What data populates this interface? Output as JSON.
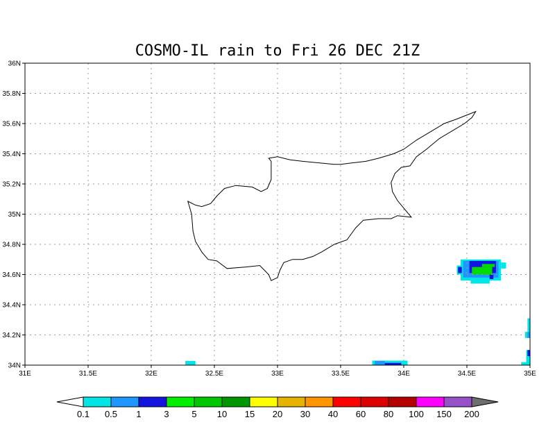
{
  "title": "COSMO-IL rain to Fri 26 DEC 21Z",
  "map": {
    "lon_range": [
      31,
      35
    ],
    "lat_range": [
      34,
      36
    ],
    "x_ticks": [
      {
        "value": 31,
        "label": "31E"
      },
      {
        "value": 31.5,
        "label": "31.5E"
      },
      {
        "value": 32,
        "label": "32E"
      },
      {
        "value": 32.5,
        "label": "32.5E"
      },
      {
        "value": 33,
        "label": "33E"
      },
      {
        "value": 33.5,
        "label": "33.5E"
      },
      {
        "value": 34,
        "label": "34E"
      },
      {
        "value": 34.5,
        "label": "34.5E"
      },
      {
        "value": 35,
        "label": "35E"
      }
    ],
    "y_ticks": [
      {
        "value": 34,
        "label": "34N"
      },
      {
        "value": 34.2,
        "label": "34.2N"
      },
      {
        "value": 34.4,
        "label": "34.4N"
      },
      {
        "value": 34.6,
        "label": "34.6N"
      },
      {
        "value": 34.8,
        "label": "34.8N"
      },
      {
        "value": 35,
        "label": "35N"
      },
      {
        "value": 35.2,
        "label": "35.2N"
      },
      {
        "value": 35.4,
        "label": "35.4N"
      },
      {
        "value": 35.6,
        "label": "35.6N"
      },
      {
        "value": 35.8,
        "label": "35.8N"
      },
      {
        "value": 36,
        "label": "36N"
      }
    ],
    "grid": "dotted",
    "coastline": [
      [
        32.29,
        35.085
      ],
      [
        32.35,
        35.06
      ],
      [
        32.4,
        35.05
      ],
      [
        32.47,
        35.07
      ],
      [
        32.52,
        35.12
      ],
      [
        32.58,
        35.17
      ],
      [
        32.67,
        35.19
      ],
      [
        32.8,
        35.18
      ],
      [
        32.87,
        35.15
      ],
      [
        32.92,
        35.17
      ],
      [
        32.95,
        35.23
      ],
      [
        32.95,
        35.35
      ],
      [
        32.93,
        35.37
      ],
      [
        33.0,
        35.38
      ],
      [
        33.1,
        35.36
      ],
      [
        33.2,
        35.35
      ],
      [
        33.32,
        35.34
      ],
      [
        33.45,
        35.33
      ],
      [
        33.5,
        35.33
      ],
      [
        33.6,
        35.34
      ],
      [
        33.7,
        35.35
      ],
      [
        33.8,
        35.37
      ],
      [
        33.92,
        35.4
      ],
      [
        34.0,
        35.43
      ],
      [
        34.1,
        35.49
      ],
      [
        34.2,
        35.54
      ],
      [
        34.32,
        35.6
      ],
      [
        34.42,
        35.63
      ],
      [
        34.51,
        35.66
      ],
      [
        34.57,
        35.68
      ],
      [
        34.54,
        35.64
      ],
      [
        34.48,
        35.6
      ],
      [
        34.38,
        35.55
      ],
      [
        34.28,
        35.5
      ],
      [
        34.18,
        35.43
      ],
      [
        34.1,
        35.38
      ],
      [
        34.05,
        35.32
      ],
      [
        33.98,
        35.31
      ],
      [
        33.93,
        35.27
      ],
      [
        33.9,
        35.21
      ],
      [
        33.91,
        35.15
      ],
      [
        33.95,
        35.09
      ],
      [
        34.0,
        35.04
      ],
      [
        34.06,
        34.98
      ],
      [
        33.95,
        34.99
      ],
      [
        33.9,
        34.97
      ],
      [
        33.8,
        34.97
      ],
      [
        33.68,
        34.96
      ],
      [
        33.62,
        34.91
      ],
      [
        33.55,
        34.83
      ],
      [
        33.45,
        34.8
      ],
      [
        33.35,
        34.75
      ],
      [
        33.28,
        34.72
      ],
      [
        33.2,
        34.7
      ],
      [
        33.12,
        34.7
      ],
      [
        33.05,
        34.68
      ],
      [
        33.02,
        34.63
      ],
      [
        33.0,
        34.58
      ],
      [
        32.95,
        34.56
      ],
      [
        32.93,
        34.6
      ],
      [
        32.86,
        34.66
      ],
      [
        32.75,
        34.65
      ],
      [
        32.6,
        34.64
      ],
      [
        32.52,
        34.69
      ],
      [
        32.45,
        34.7
      ],
      [
        32.4,
        34.75
      ],
      [
        32.35,
        34.82
      ],
      [
        32.33,
        34.89
      ],
      [
        32.32,
        35.0
      ],
      [
        32.29,
        35.085
      ]
    ],
    "rain_cells": [
      {
        "lon0": 32.27,
        "lat0": 34.0,
        "lon1": 32.35,
        "lat1": 34.028,
        "color": "#00e5e5"
      },
      {
        "lon0": 33.75,
        "lat0": 34.0,
        "lon1": 34.03,
        "lat1": 34.03,
        "color": "#00e5e5"
      },
      {
        "lon0": 33.77,
        "lat0": 34.0,
        "lon1": 33.85,
        "lat1": 34.028,
        "color": "#1e96ff"
      },
      {
        "lon0": 33.85,
        "lat0": 34.0,
        "lon1": 33.98,
        "lat1": 34.015,
        "color": "#1414e1"
      },
      {
        "lon0": 34.42,
        "lat0": 34.6,
        "lon1": 34.46,
        "lat1": 34.66,
        "color": "#00e5e5"
      },
      {
        "lon0": 34.45,
        "lat0": 34.56,
        "lon1": 34.77,
        "lat1": 34.7,
        "color": "#00e5e5"
      },
      {
        "lon0": 34.53,
        "lat0": 34.54,
        "lon1": 34.68,
        "lat1": 34.57,
        "color": "#00e5e5"
      },
      {
        "lon0": 34.77,
        "lat0": 34.64,
        "lon1": 34.81,
        "lat1": 34.68,
        "color": "#00e5e5"
      },
      {
        "lon0": 34.47,
        "lat0": 34.58,
        "lon1": 34.75,
        "lat1": 34.69,
        "color": "#1e96ff"
      },
      {
        "lon0": 34.52,
        "lat0": 34.61,
        "lon1": 34.73,
        "lat1": 34.69,
        "color": "#1414e1"
      },
      {
        "lon0": 34.43,
        "lat0": 34.61,
        "lon1": 34.46,
        "lat1": 34.65,
        "color": "#1414e1"
      },
      {
        "lon0": 34.54,
        "lat0": 34.6,
        "lon1": 34.7,
        "lat1": 34.65,
        "color": "#00dc00"
      },
      {
        "lon0": 34.62,
        "lat0": 34.65,
        "lon1": 34.72,
        "lat1": 34.67,
        "color": "#00dc00"
      },
      {
        "lon0": 34.68,
        "lat0": 34.57,
        "lon1": 34.71,
        "lat1": 34.6,
        "color": "#1414e1"
      },
      {
        "lon0": 34.93,
        "lat0": 34.0,
        "lon1": 35.0,
        "lat1": 34.02,
        "color": "#00e5e5"
      },
      {
        "lon0": 34.97,
        "lat0": 34.0,
        "lon1": 35.0,
        "lat1": 34.1,
        "color": "#00e5e5"
      },
      {
        "lon0": 34.98,
        "lat0": 34.06,
        "lon1": 35.0,
        "lat1": 34.1,
        "color": "#1414e1"
      },
      {
        "lon0": 34.96,
        "lat0": 34.18,
        "lon1": 35.0,
        "lat1": 34.22,
        "color": "#00e5e5"
      },
      {
        "lon0": 34.98,
        "lat0": 34.18,
        "lon1": 35.0,
        "lat1": 34.22,
        "color": "#1e96ff"
      },
      {
        "lon0": 34.98,
        "lat0": 34.22,
        "lon1": 35.0,
        "lat1": 34.31,
        "color": "#00e5e5"
      }
    ]
  },
  "colorbar": {
    "low_arrow_color": "#ffffff",
    "high_arrow_color": "#6e6e6e",
    "segments": [
      "#00e5e5",
      "#1e96ff",
      "#1414e1",
      "#00f000",
      "#00c800",
      "#009600",
      "#ffff00",
      "#e6b400",
      "#ff9600",
      "#ff0000",
      "#dc0000",
      "#b40000",
      "#ff00ff",
      "#9650c8"
    ],
    "labels": [
      "0.1",
      "0.5",
      "1",
      "3",
      "5",
      "10",
      "15",
      "20",
      "30",
      "40",
      "60",
      "80",
      "100",
      "150",
      "200"
    ]
  }
}
